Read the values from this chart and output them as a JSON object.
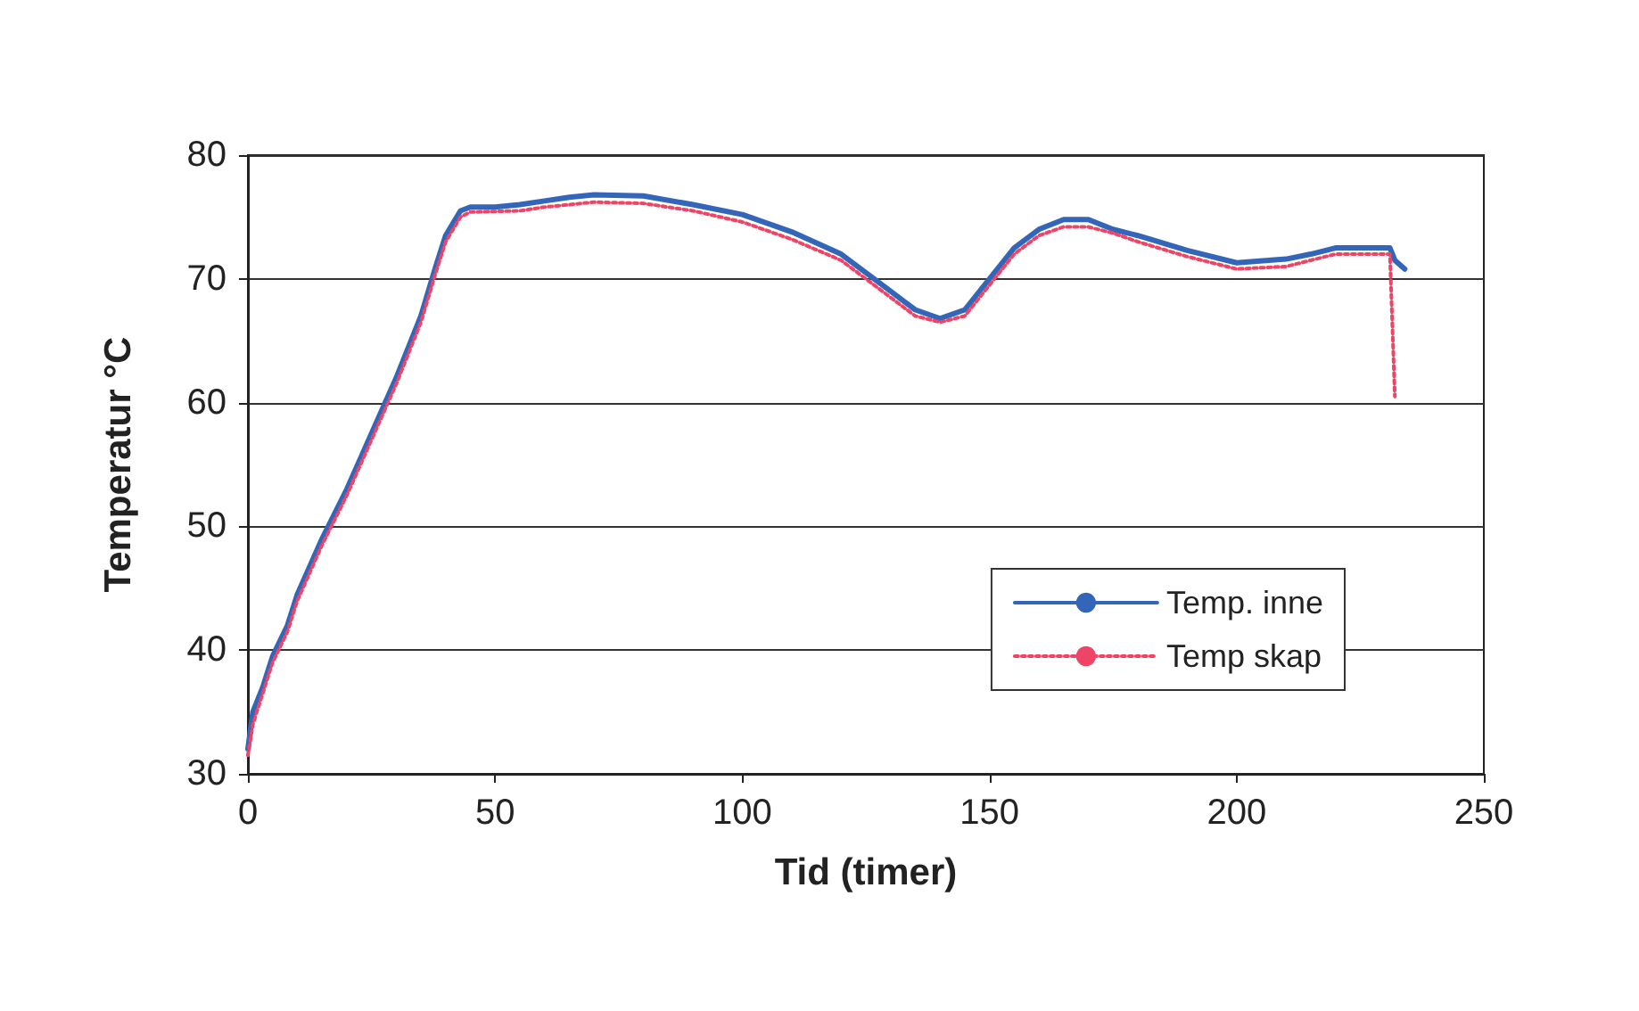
{
  "chart_data": {
    "type": "line",
    "xlabel": "Tid (timer)",
    "ylabel": "Temperatur °C",
    "xlim": [
      0,
      250
    ],
    "xticks": [
      0,
      50,
      100,
      150,
      200,
      250
    ],
    "ylim": [
      30,
      80
    ],
    "yticks": [
      30,
      40,
      50,
      60,
      70,
      80
    ],
    "grid": "y",
    "legend": "bottom right",
    "marker": "none",
    "series": [
      {
        "name": "Temp. inne",
        "color": "#3366b8",
        "line_style": "solid",
        "x": [
          0,
          1,
          3,
          5,
          8,
          10,
          15,
          20,
          25,
          30,
          35,
          38,
          40,
          43,
          45,
          50,
          55,
          60,
          65,
          70,
          80,
          90,
          100,
          110,
          120,
          130,
          135,
          140,
          145,
          150,
          155,
          160,
          165,
          170,
          175,
          180,
          190,
          200,
          210,
          215,
          220,
          231,
          232,
          234
        ],
        "values": [
          32,
          35,
          37,
          39.5,
          42,
          44.5,
          49,
          53,
          57.5,
          62,
          67,
          71,
          73.5,
          75.5,
          75.8,
          75.8,
          76,
          76.3,
          76.6,
          76.8,
          76.7,
          76,
          75.2,
          73.8,
          72,
          69,
          67.5,
          66.8,
          67.5,
          70,
          72.5,
          74,
          74.8,
          74.8,
          74,
          73.5,
          72.3,
          71.3,
          71.6,
          72,
          72.5,
          72.5,
          71.5,
          70.8
        ]
      },
      {
        "name": "Temp skap",
        "color": "#ee4466",
        "line_style": "dotted",
        "x": [
          0,
          1,
          3,
          5,
          8,
          10,
          15,
          20,
          25,
          30,
          35,
          38,
          40,
          43,
          45,
          55,
          60,
          65,
          70,
          80,
          90,
          100,
          110,
          120,
          130,
          135,
          140,
          145,
          150,
          155,
          160,
          165,
          170,
          175,
          180,
          190,
          200,
          210,
          215,
          220,
          231,
          232
        ],
        "values": [
          31.5,
          34,
          36.5,
          39,
          41.5,
          44,
          48.5,
          52.5,
          57,
          61.5,
          66.5,
          70.5,
          73,
          75,
          75.4,
          75.5,
          75.8,
          76,
          76.2,
          76.1,
          75.5,
          74.6,
          73.2,
          71.5,
          68.5,
          67,
          66.5,
          67,
          69.5,
          72,
          73.5,
          74.2,
          74.2,
          73.7,
          73,
          71.8,
          70.8,
          71,
          71.5,
          72,
          72,
          60.5
        ]
      }
    ]
  }
}
